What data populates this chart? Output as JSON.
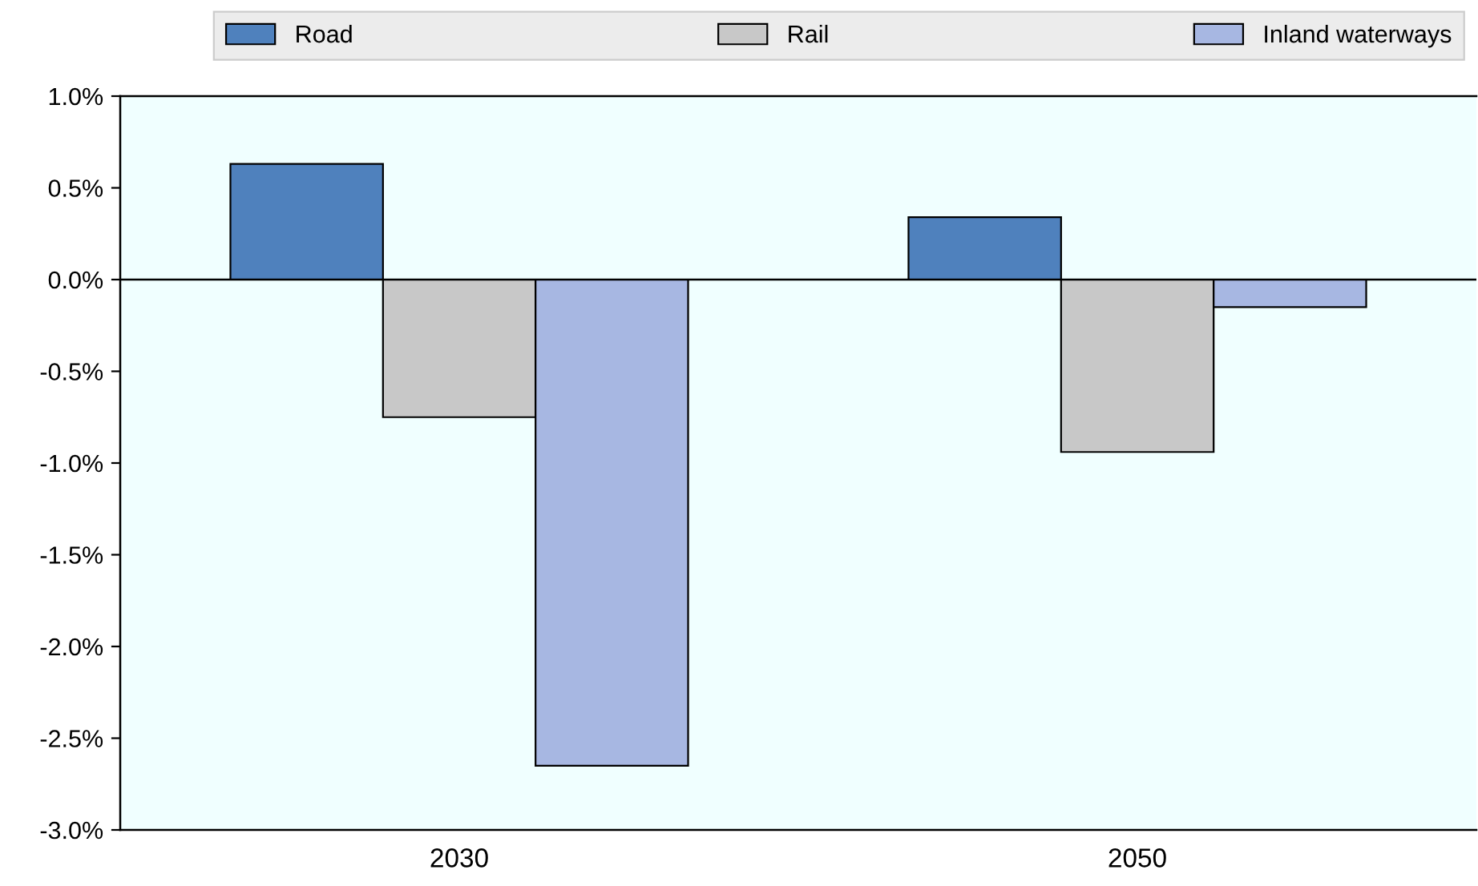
{
  "chart_data": {
    "type": "bar",
    "categories": [
      "2030",
      "2050"
    ],
    "series": [
      {
        "name": "Road",
        "color": "#4f81bd",
        "values": [
          0.63,
          0.34
        ]
      },
      {
        "name": "Rail",
        "color": "#c8c8c8",
        "values": [
          -0.75,
          -0.94
        ]
      },
      {
        "name": "Inland waterways",
        "color": "#a7b7e2",
        "values": [
          -2.65,
          -0.15
        ]
      }
    ],
    "ylim": [
      -3.0,
      1.0
    ],
    "yticks": [
      {
        "value": -3.0,
        "label": "-3.0%"
      },
      {
        "value": -2.5,
        "label": "-2.5%"
      },
      {
        "value": -2.0,
        "label": "-2.0%"
      },
      {
        "value": -1.5,
        "label": "-1.5%"
      },
      {
        "value": -1.0,
        "label": "-1.0%"
      },
      {
        "value": -0.5,
        "label": "-0.5%"
      },
      {
        "value": 0.0,
        "label": "0.0%"
      },
      {
        "value": 0.5,
        "label": "0.5%"
      },
      {
        "value": 1.0,
        "label": "1.0%"
      }
    ],
    "ref_lines": [
      {
        "axis": "y",
        "value": 0.0,
        "color": "#000000"
      }
    ],
    "grid": false,
    "legend": "top"
  }
}
